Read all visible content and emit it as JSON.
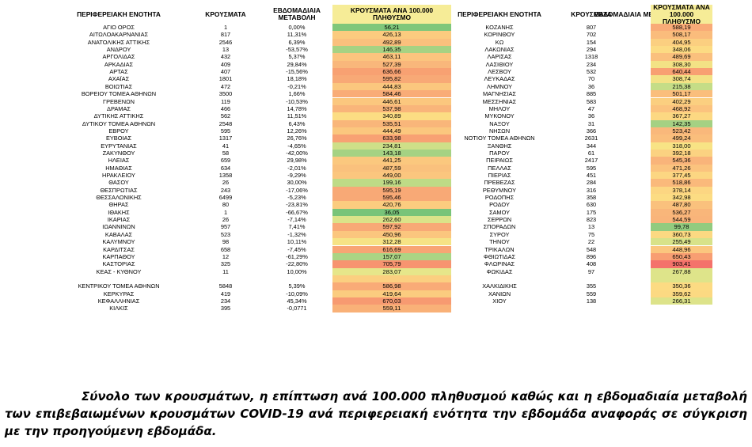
{
  "headers": {
    "region": "ΠΕΡΙΦΕΡΕΙΑΚΗ ΕΝΟΤΗΤΑ",
    "cases": "ΚΡΟΥΣΜΑΤΑ",
    "weekly_change": "ΕΒΔΟΜΑΔΙΑΙΑ ΜΕΤΑΒΟΛΗ",
    "rate": "ΚΡΟΥΣΜΑΤΑ ΑΝΑ 100.000 ΠΛΗΘΥΣΜΟ"
  },
  "left_rows": [
    {
      "region": "ΑΓΙΟ ΟΡΟΣ",
      "cases": "1",
      "change": "0,00%",
      "rate": "56,21",
      "color": "#7fc77a"
    },
    {
      "region": "ΑΙΤΩΛΟΑΚΑΡΝΑΝΙΑΣ",
      "cases": "817",
      "change": "11,31%",
      "rate": "426,13",
      "color": "#fbcb7f"
    },
    {
      "region": "ΑΝΑΤΟΛΙΚΗΣ ΑΤΤΙΚΗΣ",
      "cases": "2546",
      "change": "6,39%",
      "rate": "492,89",
      "color": "#fac07d"
    },
    {
      "region": "ΑΝΔΡΟΥ",
      "cases": "13",
      "change": "-53,57%",
      "rate": "146,35",
      "color": "#a6d283"
    },
    {
      "region": "ΑΡΓΟΛΙΔΑΣ",
      "cases": "432",
      "change": "5,37%",
      "rate": "463,11",
      "color": "#fbc47e"
    },
    {
      "region": "ΑΡΚΑΔΙΑΣ",
      "cases": "409",
      "change": "29,84%",
      "rate": "527,39",
      "color": "#f9b77b"
    },
    {
      "region": "ΑΡΤΑΣ",
      "cases": "407",
      "change": "-15,56%",
      "rate": "636,66",
      "color": "#f8a172"
    },
    {
      "region": "ΑΧΑΪΑΣ",
      "cases": "1801",
      "change": "18,18%",
      "rate": "595,82",
      "color": "#f8a976"
    },
    {
      "region": "ΒΟΙΩΤΙΑΣ",
      "cases": "472",
      "change": "-0,21%",
      "rate": "444,83",
      "color": "#fbc77e"
    },
    {
      "region": "ΒΟΡΕΙΟΥ ΤΟΜΕΑ ΑΘΗΝΩΝ",
      "cases": "3500",
      "change": "1,66%",
      "rate": "584,46",
      "color": "#f9ac77"
    },
    {
      "region": "ΓΡΕΒΕΝΩΝ",
      "cases": "119",
      "change": "-10,53%",
      "rate": "446,61",
      "color": "#fbc77e"
    },
    {
      "region": "ΔΡΑΜΑΣ",
      "cases": "466",
      "change": "14,78%",
      "rate": "537,98",
      "color": "#f9b57a"
    },
    {
      "region": "ΔΥΤΙΚΗΣ ΑΤΤΙΚΗΣ",
      "cases": "562",
      "change": "11,51%",
      "rate": "340,89",
      "color": "#fcdd83"
    },
    {
      "region": "ΔΥΤΙΚΟΥ ΤΟΜΕΑ ΑΘΗΝΩΝ",
      "cases": "2548",
      "change": "6,43%",
      "rate": "535,51",
      "color": "#f9b67a"
    },
    {
      "region": "ΕΒΡΟΥ",
      "cases": "595",
      "change": "12,26%",
      "rate": "444,49",
      "color": "#fbc77e"
    },
    {
      "region": "ΕΥΒΟΙΑΣ",
      "cases": "1317",
      "change": "26,76%",
      "rate": "633,98",
      "color": "#f8a173"
    },
    {
      "region": "ΕΥΡΥΤΑΝΙΑΣ",
      "cases": "41",
      "change": "-4,65%",
      "rate": "234,81",
      "color": "#cedf88"
    },
    {
      "region": "ΖΑΚΥΝΘΟΥ",
      "cases": "58",
      "change": "-42,00%",
      "rate": "143,18",
      "color": "#a5d283"
    },
    {
      "region": "ΗΛΕΙΑΣ",
      "cases": "659",
      "change": "29,98%",
      "rate": "441,25",
      "color": "#fbc87e"
    },
    {
      "region": "ΗΜΑΘΙΑΣ",
      "cases": "634",
      "change": "-2,01%",
      "rate": "487,59",
      "color": "#fac17d"
    },
    {
      "region": "ΗΡΑΚΛΕΙΟΥ",
      "cases": "1358",
      "change": "-9,29%",
      "rate": "449,00",
      "color": "#fbc67e"
    },
    {
      "region": "ΘΑΣΟΥ",
      "cases": "26",
      "change": "30,00%",
      "rate": "199,16",
      "color": "#bedb86"
    },
    {
      "region": "ΘΕΣΠΡΩΤΙΑΣ",
      "cases": "243",
      "change": "-17,06%",
      "rate": "595,19",
      "color": "#f8a976"
    },
    {
      "region": "ΘΕΣΣΑΛΟΝΙΚΗΣ",
      "cases": "6499",
      "change": "-5,23%",
      "rate": "595,46",
      "color": "#f8a976"
    },
    {
      "region": "ΘΗΡΑΣ",
      "cases": "80",
      "change": "-23,81%",
      "rate": "420,76",
      "color": "#fbcc7f"
    },
    {
      "region": "ΙΘΑΚΗΣ",
      "cases": "1",
      "change": "-66,67%",
      "rate": "36,05",
      "color": "#78c479"
    },
    {
      "region": "ΙΚΑΡΙΑΣ",
      "cases": "26",
      "change": "-7,14%",
      "rate": "262,60",
      "color": "#dbe389"
    },
    {
      "region": "ΙΩΑΝΝΙΝΩΝ",
      "cases": "957",
      "change": "7,41%",
      "rate": "597,92",
      "color": "#f8a976"
    },
    {
      "region": "ΚΑΒΑΛΑΣ",
      "cases": "523",
      "change": "-1,32%",
      "rate": "450,96",
      "color": "#fbc67e"
    },
    {
      "region": "ΚΑΛΥΜΝΟΥ",
      "cases": "98",
      "change": "10,11%",
      "rate": "312,28",
      "color": "#f6e385"
    },
    {
      "region": "ΚΑΡΔΙΤΣΑΣ",
      "cases": "658",
      "change": "-7,45%",
      "rate": "616,69",
      "color": "#f8a574"
    },
    {
      "region": "ΚΑΡΠΑΘΟΥ",
      "cases": "12",
      "change": "-61,29%",
      "rate": "157,07",
      "color": "#abd484"
    },
    {
      "region": "ΚΑΣΤΟΡΙΑΣ",
      "cases": "325",
      "change": "-22,80%",
      "rate": "705,79",
      "color": "#f79470"
    },
    {
      "region": "ΚΕΑΣ - ΚΥΘΝΟΥ",
      "cases": "11",
      "change": "10,00%",
      "rate": "283,07",
      "color": "#e6e68a"
    },
    {
      "region": "",
      "cases": "",
      "change": "",
      "rate": "",
      "color": "#fbcf80"
    },
    {
      "region": "ΚΕΝΤΡΙΚΟΥ ΤΟΜΕΑ ΑΘΗΝΩΝ",
      "cases": "5848",
      "change": "5,39%",
      "rate": "586,98",
      "color": "#f9ab77"
    },
    {
      "region": "ΚΕΡΚΥΡΑΣ",
      "cases": "419",
      "change": "-10,09%",
      "rate": "419,64",
      "color": "#fbcc7f"
    },
    {
      "region": "ΚΕΦΑΛΛΗΝΙΑΣ",
      "cases": "234",
      "change": "45,34%",
      "rate": "670,03",
      "color": "#f79a71"
    },
    {
      "region": "ΚΙΛΚΙΣ",
      "cases": "395",
      "change": "-0,0771",
      "rate": "559,11",
      "color": "#f9b178"
    }
  ],
  "right_rows": [
    {
      "region": "ΚΟΖΑΝΗΣ",
      "cases": "807",
      "change": "-15,85%",
      "rate": "588,19",
      "color": "#f9ab77"
    },
    {
      "region": "ΚΟΡΙΝΘΟΥ",
      "cases": "702",
      "change": "15,27%",
      "rate": "508,17",
      "color": "#fabc7c"
    },
    {
      "region": "ΚΩ",
      "cases": "154",
      "change": "-10,98%",
      "rate": "404,95",
      "color": "#fbcf80"
    },
    {
      "region": "ΛΑΚΩΝΙΑΣ",
      "cases": "294",
      "change": "19,51%",
      "rate": "348,06",
      "color": "#fcdb83"
    },
    {
      "region": "ΛΑΡΙΣΑΣ",
      "cases": "1318",
      "change": "-16,32%",
      "rate": "489,69",
      "color": "#fac07d"
    },
    {
      "region": "ΛΑΣΙΘΙΟΥ",
      "cases": "234",
      "change": "-38,10%",
      "rate": "308,30",
      "color": "#f3e285"
    },
    {
      "region": "ΛΕΣΒΟΥ",
      "cases": "532",
      "change": "6,83%",
      "rate": "640,44",
      "color": "#f8a072"
    },
    {
      "region": "ΛΕΥΚΑΔΑΣ",
      "cases": "70",
      "change": "-34,58%",
      "rate": "308,74",
      "color": "#f3e285"
    },
    {
      "region": "ΛΗΜΝΟΥ",
      "cases": "36",
      "change": "-7,69%",
      "rate": "215,38",
      "color": "#c5dd87"
    },
    {
      "region": "ΜΑΓΝΗΣΙΑΣ",
      "cases": "885",
      "change": "2,08%",
      "rate": "501,17",
      "color": "#fabe7c"
    },
    {
      "region": "ΜΕΣΣΗΝΙΑΣ",
      "cases": "583",
      "change": "2,46%",
      "rate": "402,29",
      "color": "#fbcf80"
    },
    {
      "region": "ΜΗΛΟΥ",
      "cases": "47",
      "change": "-44,71%",
      "rate": "468,92",
      "color": "#fbc37e"
    },
    {
      "region": "ΜΥΚΟΝΟΥ",
      "cases": "36",
      "change": "-37,93%",
      "rate": "367,27",
      "color": "#fcd882"
    },
    {
      "region": "ΝΑΞΟΥ",
      "cases": "31",
      "change": "40,91%",
      "rate": "142,35",
      "color": "#a4d183"
    },
    {
      "region": "ΝΗΣΩΝ",
      "cases": "366",
      "change": "1,95%",
      "rate": "523,42",
      "color": "#f9b87b"
    },
    {
      "region": "ΝΟΤΙΟΥ ΤΟΜΕΑ ΑΘΗΝΩΝ",
      "cases": "2631",
      "change": "1,70%",
      "rate": "499,24",
      "color": "#fabe7c"
    },
    {
      "region": "ΞΑΝΘΗΣ",
      "cases": "344",
      "change": "29,81%",
      "rate": "318,00",
      "color": "#f8e385"
    },
    {
      "region": "ΠΑΡΟΥ",
      "cases": "61",
      "change": "90,63%",
      "rate": "392,18",
      "color": "#fbd281"
    },
    {
      "region": "ΠΕΙΡΑΙΩΣ",
      "cases": "2417",
      "change": "-1,75%",
      "rate": "545,36",
      "color": "#f9b47a"
    },
    {
      "region": "ΠΕΛΛΑΣ",
      "cases": "595",
      "change": "-5,25%",
      "rate": "471,26",
      "color": "#fbc37e"
    },
    {
      "region": "ΠΙΕΡΙΑΣ",
      "cases": "451",
      "change": "2,04%",
      "rate": "377,45",
      "color": "#fcd682"
    },
    {
      "region": "ΠΡΕΒΕΖΑΣ",
      "cases": "284",
      "change": "60,45%",
      "rate": "518,86",
      "color": "#fab97b"
    },
    {
      "region": "ΡΕΘΥΜΝΟΥ",
      "cases": "316",
      "change": "1,61%",
      "rate": "378,14",
      "color": "#fcd682"
    },
    {
      "region": "ΡΟΔΟΠΗΣ",
      "cases": "358",
      "change": "-14,56%",
      "rate": "342,98",
      "color": "#fcdc83"
    },
    {
      "region": "ΡΟΔΟΥ",
      "cases": "630",
      "change": "-18,81%",
      "rate": "487,80",
      "color": "#fac17d"
    },
    {
      "region": "ΣΑΜΟΥ",
      "cases": "175",
      "change": "8,02%",
      "rate": "536,27",
      "color": "#f9b67a"
    },
    {
      "region": "ΣΕΡΡΩΝ",
      "cases": "823",
      "change": "-0,84%",
      "rate": "544,59",
      "color": "#f9b47a"
    },
    {
      "region": "ΣΠΟΡΑΔΩΝ",
      "cases": "13",
      "change": "8,33%",
      "rate": "99,78",
      "color": "#92cb7f"
    },
    {
      "region": "ΣΥΡΟΥ",
      "cases": "75",
      "change": "-34,78%",
      "rate": "360,73",
      "color": "#fcd982"
    },
    {
      "region": "ΤΗΝΟΥ",
      "cases": "22",
      "change": "100,00%",
      "rate": "255,49",
      "color": "#d8e289"
    },
    {
      "region": "ΤΡΙΚΑΛΩΝ",
      "cases": "548",
      "change": "-18,57%",
      "rate": "448,96",
      "color": "#fbc67e"
    },
    {
      "region": "ΦΘΙΩΤΙΔΑΣ",
      "cases": "896",
      "change": "21,41%",
      "rate": "650,43",
      "color": "#f89e72"
    },
    {
      "region": "ΦΛΩΡΙΝΑΣ",
      "cases": "408",
      "change": "-15,70%",
      "rate": "903,41",
      "color": "#f4726b"
    },
    {
      "region": "ΦΩΚΙΔΑΣ",
      "cases": "97",
      "change": "8,99%",
      "rate": "267,88",
      "color": "#dee48a"
    },
    {
      "region": "",
      "cases": "",
      "change": "",
      "rate": "",
      "color": "#dee48a"
    },
    {
      "region": "ΧΑΛΚΙΔΙΚΗΣ",
      "cases": "355",
      "change": "-7,55%",
      "rate": "350,36",
      "color": "#fcdb83"
    },
    {
      "region": "ΧΑΝΙΩΝ",
      "cases": "559",
      "change": "-3,79%",
      "rate": "359,62",
      "color": "#fcd982"
    },
    {
      "region": "ΧΙΟΥ",
      "cases": "138",
      "change": "-14,29%",
      "rate": "266,31",
      "color": "#dde38a"
    },
    {
      "region": "",
      "cases": "",
      "change": "",
      "rate": "",
      "color": "#ffffff"
    }
  ],
  "caption": "Σύνολο των κρουσμάτων, η επίπτωση ανά 100.000 πληθυσμού καθώς και η εβδομαδιαία μεταβολή των επιβεβαιωμένων κρουσμάτων COVID-19 ανά περιφερειακή ενότητα την εβδομάδα αναφοράς σε σύγκριση με την προηγούμενη εβδομάδα."
}
